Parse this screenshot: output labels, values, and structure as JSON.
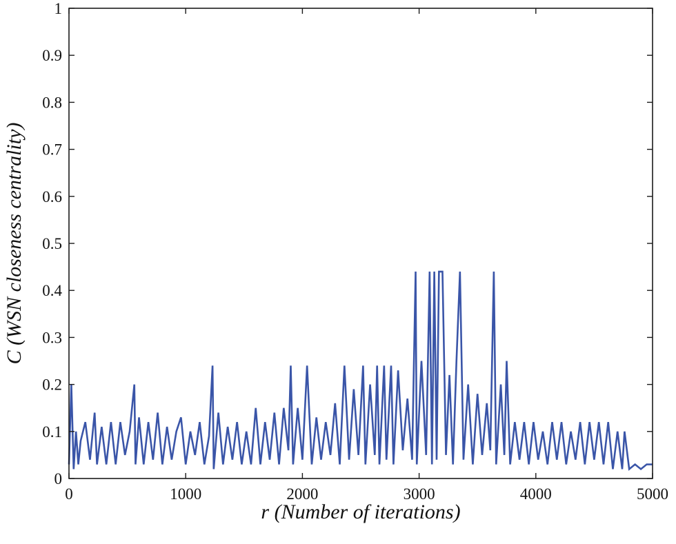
{
  "chart_data": {
    "type": "line",
    "title": "",
    "xlabel": "r (Number of iterations)",
    "ylabel": "C (WSN closeness centrality)",
    "xlim": [
      0,
      5000
    ],
    "ylim": [
      0,
      1
    ],
    "xticks": [
      "0",
      "1000",
      "2000",
      "3000",
      "4000",
      "5000"
    ],
    "yticks": [
      "0",
      "0.1",
      "0.2",
      "0.3",
      "0.4",
      "0.5",
      "0.6",
      "0.7",
      "0.8",
      "0.9",
      "1"
    ],
    "grid": false,
    "legend": "none",
    "series_color": "#3a55a8",
    "series": [
      {
        "x": [
          0,
          20,
          40,
          60,
          80,
          100,
          140,
          180,
          220,
          240,
          280,
          320,
          360,
          400,
          440,
          480,
          520,
          560,
          570,
          600,
          640,
          680,
          720,
          760,
          800,
          840,
          880,
          920,
          960,
          1000,
          1040,
          1080,
          1120,
          1160,
          1200,
          1230,
          1240,
          1280,
          1320,
          1360,
          1400,
          1440,
          1480,
          1520,
          1560,
          1600,
          1640,
          1680,
          1720,
          1760,
          1800,
          1840,
          1880,
          1900,
          1920,
          1960,
          2000,
          2040,
          2080,
          2120,
          2160,
          2200,
          2240,
          2280,
          2320,
          2360,
          2400,
          2440,
          2480,
          2520,
          2540,
          2580,
          2620,
          2640,
          2660,
          2700,
          2720,
          2760,
          2780,
          2820,
          2860,
          2900,
          2940,
          2970,
          2980,
          3020,
          3060,
          3090,
          3110,
          3130,
          3150,
          3170,
          3200,
          3230,
          3260,
          3290,
          3320,
          3350,
          3380,
          3420,
          3460,
          3500,
          3540,
          3580,
          3610,
          3640,
          3660,
          3700,
          3730,
          3750,
          3780,
          3820,
          3860,
          3900,
          3940,
          3980,
          4020,
          4060,
          4100,
          4140,
          4180,
          4220,
          4260,
          4300,
          4340,
          4380,
          4420,
          4460,
          4500,
          4540,
          4580,
          4620,
          4660,
          4700,
          4740,
          4760,
          4800,
          4850,
          4900,
          4950,
          5000
        ],
        "y": [
          0.03,
          0.2,
          0.02,
          0.1,
          0.03,
          0.08,
          0.12,
          0.04,
          0.14,
          0.03,
          0.11,
          0.03,
          0.12,
          0.03,
          0.12,
          0.05,
          0.1,
          0.2,
          0.03,
          0.13,
          0.03,
          0.12,
          0.04,
          0.14,
          0.03,
          0.11,
          0.04,
          0.1,
          0.13,
          0.03,
          0.1,
          0.05,
          0.12,
          0.03,
          0.09,
          0.24,
          0.02,
          0.14,
          0.03,
          0.11,
          0.04,
          0.12,
          0.03,
          0.1,
          0.03,
          0.15,
          0.03,
          0.12,
          0.04,
          0.14,
          0.03,
          0.15,
          0.06,
          0.24,
          0.03,
          0.15,
          0.04,
          0.24,
          0.03,
          0.13,
          0.04,
          0.12,
          0.05,
          0.16,
          0.03,
          0.24,
          0.04,
          0.19,
          0.05,
          0.24,
          0.03,
          0.2,
          0.05,
          0.24,
          0.03,
          0.24,
          0.04,
          0.24,
          0.03,
          0.23,
          0.06,
          0.17,
          0.04,
          0.44,
          0.03,
          0.25,
          0.05,
          0.44,
          0.03,
          0.44,
          0.04,
          0.44,
          0.44,
          0.05,
          0.22,
          0.03,
          0.25,
          0.44,
          0.04,
          0.2,
          0.03,
          0.18,
          0.05,
          0.16,
          0.06,
          0.44,
          0.03,
          0.2,
          0.05,
          0.25,
          0.03,
          0.12,
          0.04,
          0.12,
          0.03,
          0.12,
          0.04,
          0.1,
          0.03,
          0.12,
          0.04,
          0.12,
          0.03,
          0.1,
          0.04,
          0.12,
          0.03,
          0.12,
          0.04,
          0.12,
          0.03,
          0.12,
          0.02,
          0.1,
          0.02,
          0.1,
          0.02,
          0.03,
          0.02,
          0.03,
          0.03
        ]
      }
    ]
  }
}
